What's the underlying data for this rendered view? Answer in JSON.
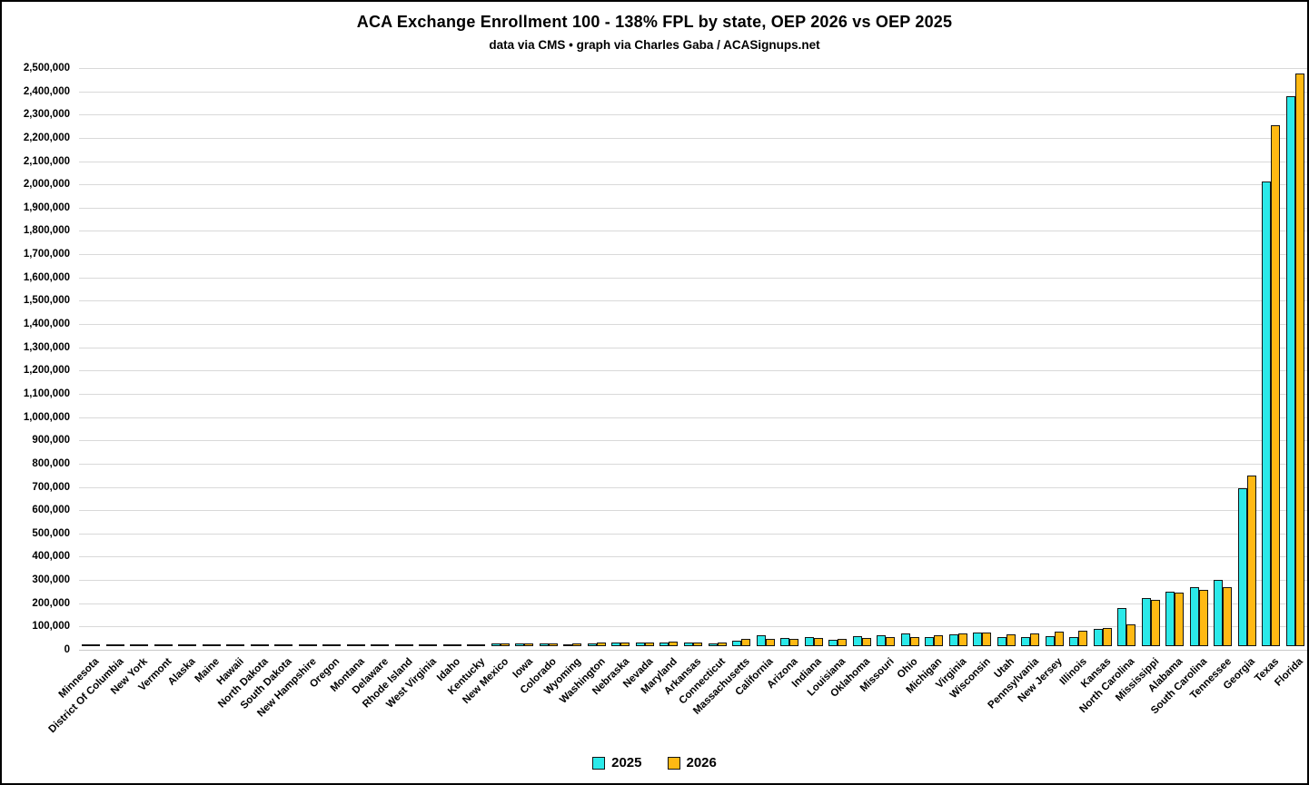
{
  "title": "ACA Exchange Enrollment 100 - 138% FPL by state, OEP 2026 vs OEP 2025",
  "subtitle": "data via CMS • graph via Charles Gaba / ACASignups.net",
  "colors": {
    "series_2025": "#2BE9E9",
    "series_2026": "#FFB913",
    "bar_border": "#141414",
    "gridline": "#D9D9D9",
    "text": "#000000",
    "background": "#FFFFFF"
  },
  "legend": {
    "items": [
      {
        "label": "2025",
        "color": "#2BE9E9"
      },
      {
        "label": "2026",
        "color": "#FFB913"
      }
    ],
    "position": "bottom"
  },
  "chart_data": {
    "type": "bar",
    "title": "ACA Exchange Enrollment 100 - 138% FPL by state, OEP 2026 vs OEP 2025",
    "subtitle": "data via CMS • graph via Charles Gaba / ACASignups.net",
    "xlabel": "",
    "ylabel": "",
    "ylim": [
      0,
      2500000
    ],
    "ytick_step": 100000,
    "grid": true,
    "legend_position": "bottom",
    "ytick_labels": [
      "0",
      "100,000",
      "200,000",
      "300,000",
      "400,000",
      "500,000",
      "600,000",
      "700,000",
      "800,000",
      "900,000",
      "1,000,000",
      "1,100,000",
      "1,200,000",
      "1,300,000",
      "1,400,000",
      "1,500,000",
      "1,600,000",
      "1,700,000",
      "1,800,000",
      "1,900,000",
      "2,000,000",
      "2,100,000",
      "2,200,000",
      "2,300,000",
      "2,400,000",
      "2,500,000"
    ],
    "categories": [
      "Minnesota",
      "District Of Columbia",
      "New York",
      "Vermont",
      "Alaska",
      "Maine",
      "Hawaii",
      "North Dakota",
      "South Dakota",
      "New Hampshire",
      "Oregon",
      "Montana",
      "Delaware",
      "Rhode Island",
      "West Virginia",
      "Idaho",
      "Kentucky",
      "New Mexico",
      "Iowa",
      "Colorado",
      "Wyoming",
      "Washington",
      "Nebraska",
      "Nevada",
      "Maryland",
      "Arkansas",
      "Connecticut",
      "Massachusetts",
      "California",
      "Arizona",
      "Indiana",
      "Louisiana",
      "Oklahoma",
      "Missouri",
      "Ohio",
      "Michigan",
      "Virginia",
      "Wisconsin",
      "Utah",
      "Pennsylvania",
      "New Jersey",
      "Illinois",
      "Kansas",
      "North Carolina",
      "Mississippi",
      "Alabama",
      "South Carolina",
      "Tennessee",
      "Georgia",
      "Texas",
      "Florida"
    ],
    "series": [
      {
        "name": "2025",
        "color": "#2BE9E9",
        "values": [
          700,
          900,
          1200,
          1400,
          1700,
          2000,
          2200,
          2500,
          2800,
          3000,
          3400,
          3800,
          6500,
          5500,
          6000,
          5000,
          9000,
          10000,
          10500,
          10000,
          8000,
          11000,
          14000,
          15000,
          15500,
          14000,
          12000,
          22000,
          47000,
          36000,
          40000,
          28000,
          42000,
          45000,
          53000,
          38000,
          51000,
          58000,
          38000,
          40000,
          42000,
          41000,
          75000,
          165000,
          205000,
          235000,
          253000,
          285000,
          680000,
          1995000,
          2365000
        ]
      },
      {
        "name": "2026",
        "color": "#FFB913",
        "values": [
          800,
          1000,
          1300,
          1500,
          1800,
          2100,
          2400,
          2700,
          3000,
          3200,
          3600,
          4000,
          4200,
          4500,
          5000,
          6000,
          9500,
          10000,
          10000,
          11000,
          11500,
          14000,
          15500,
          17500,
          18500,
          16000,
          17000,
          30000,
          32000,
          31000,
          34000,
          33000,
          36000,
          38000,
          41000,
          45000,
          55000,
          60000,
          52000,
          55000,
          63000,
          67000,
          80000,
          95000,
          200000,
          230000,
          240000,
          255000,
          735000,
          2240000,
          2460000
        ]
      }
    ]
  }
}
